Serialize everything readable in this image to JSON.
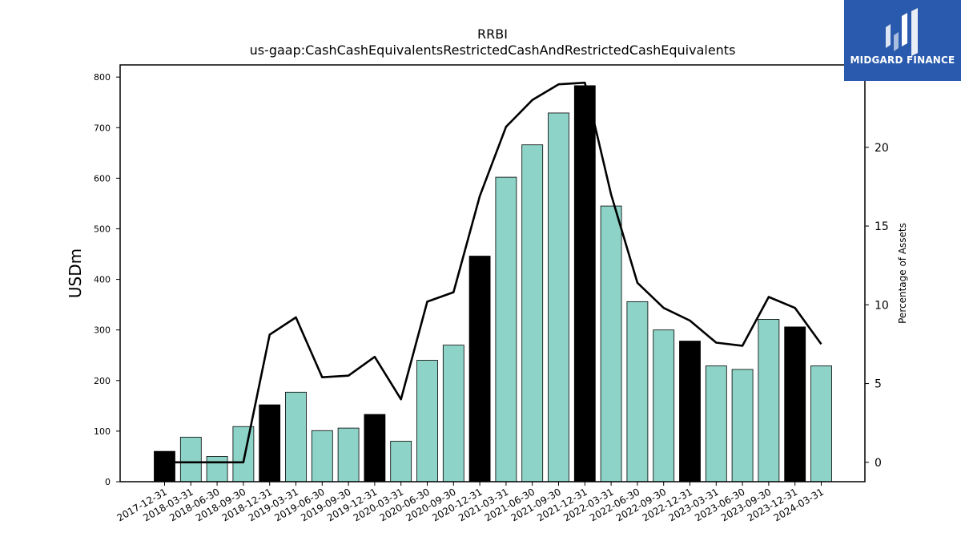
{
  "chart_data": {
    "type": "bar",
    "title": "RRBI",
    "subtitle": "us-gaap:CashCashEquivalentsRestrictedCashAndRestrictedCashEquivalents",
    "ylabel": "USDm",
    "y2label": "Percentage of Assets",
    "categories": [
      "2017-12-31",
      "2018-03-31",
      "2018-06-30",
      "2018-09-30",
      "2018-12-31",
      "2019-03-31",
      "2019-06-30",
      "2019-09-30",
      "2019-12-31",
      "2020-03-31",
      "2020-06-30",
      "2020-09-30",
      "2020-12-31",
      "2021-03-31",
      "2021-06-30",
      "2021-09-30",
      "2021-12-31",
      "2022-03-31",
      "2022-06-30",
      "2022-09-30",
      "2022-12-31",
      "2023-03-31",
      "2023-06-30",
      "2023-09-30",
      "2023-12-31",
      "2024-03-31"
    ],
    "series": [
      {
        "values": [
          60,
          88,
          50,
          109,
          152,
          177,
          101,
          106,
          133,
          80,
          240,
          270,
          446,
          602,
          666,
          729,
          783,
          545,
          356,
          300,
          278,
          229,
          222,
          321,
          306,
          229
        ],
        "bar_colors": [
          "#000000",
          "#8dd3c7",
          "#8dd3c7",
          "#8dd3c7",
          "#000000",
          "#8dd3c7",
          "#8dd3c7",
          "#8dd3c7",
          "#000000",
          "#8dd3c7",
          "#8dd3c7",
          "#8dd3c7",
          "#000000",
          "#8dd3c7",
          "#8dd3c7",
          "#8dd3c7",
          "#000000",
          "#8dd3c7",
          "#8dd3c7",
          "#8dd3c7",
          "#000000",
          "#8dd3c7",
          "#8dd3c7",
          "#8dd3c7",
          "#000000",
          "#8dd3c7"
        ]
      },
      {
        "axis": "right",
        "type": "line",
        "values": [
          0,
          0,
          0,
          0,
          8.1,
          9.2,
          5.4,
          5.5,
          6.7,
          4.0,
          10.2,
          10.8,
          16.9,
          21.3,
          23.0,
          24.0,
          24.1,
          17.0,
          11.4,
          9.8,
          9.0,
          7.6,
          7.4,
          10.5,
          9.8,
          7.5
        ],
        "color": "#000000"
      }
    ],
    "ylim": [
      0,
      824
    ],
    "y2lim": [
      -1.23,
      25.23
    ],
    "yticks": [
      0,
      100,
      200,
      300,
      400,
      500,
      600,
      700,
      800
    ],
    "y2ticks": [
      0,
      5,
      10,
      15,
      20
    ],
    "grid": false
  },
  "logo": {
    "text": "MIDGARD FINANCE",
    "background": "#2a5aad"
  }
}
